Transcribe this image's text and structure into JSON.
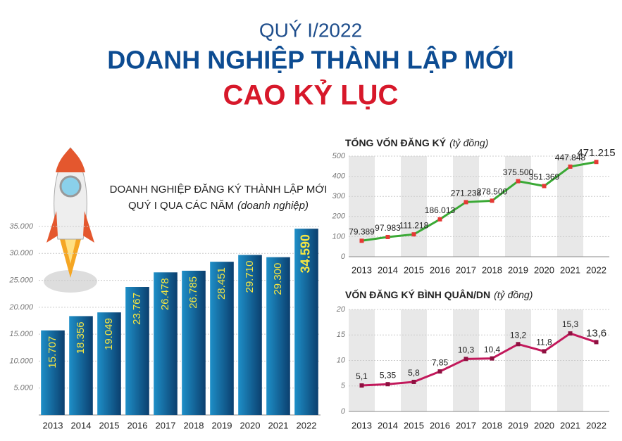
{
  "header": {
    "period": "QUÝ I/2022",
    "title": "DOANH NGHIỆP THÀNH LẬP MỚI",
    "highlight": "CAO KỶ LỤC"
  },
  "chart_data": [
    {
      "type": "bar",
      "title": "DOANH NGHIỆP ĐĂNG KÝ THÀNH LẬP MỚI",
      "subtitle": "QUÝ I QUA CÁC NĂM",
      "unit": "(doanh nghiệp)",
      "categories": [
        "2013",
        "2014",
        "2015",
        "2016",
        "2017",
        "2018",
        "2019",
        "2020",
        "2021",
        "2022"
      ],
      "values": [
        15707,
        18356,
        19049,
        23767,
        26478,
        26785,
        28451,
        29710,
        29300,
        34590
      ],
      "value_labels": [
        "15.707",
        "18.356",
        "19.049",
        "23.767",
        "26.478",
        "26.785",
        "28.451",
        "29.710",
        "29.300",
        "34.590"
      ],
      "color": "#1e8fc8",
      "ylim": [
        0,
        35000
      ],
      "yticks": [
        {
          "value": 5000,
          "label": "5.000"
        },
        {
          "value": 10000,
          "label": "10.000"
        },
        {
          "value": 15000,
          "label": "15.000"
        },
        {
          "value": 20000,
          "label": "20.000"
        },
        {
          "value": 25000,
          "label": "25.000"
        },
        {
          "value": 30000,
          "label": "30.000"
        },
        {
          "value": 35000,
          "label": "35.000"
        }
      ],
      "grid": true
    },
    {
      "type": "line",
      "title": "TỔNG VỐN ĐĂNG KÝ",
      "unit": "(tỷ đồng)",
      "categories": [
        "2013",
        "2014",
        "2015",
        "2016",
        "2017",
        "2018",
        "2019",
        "2020",
        "2021",
        "2022"
      ],
      "values": [
        79.389,
        97.983,
        111.218,
        186.013,
        271.238,
        278.5,
        375.5,
        351.369,
        447.848,
        471.215
      ],
      "value_labels": [
        "79.389",
        "97.983",
        "111.218",
        "186.013",
        "271.238",
        "278.500",
        "375.500",
        "351.369",
        "447.848",
        "471.215"
      ],
      "color": "#3aa935",
      "marker_color": "#e53935",
      "ylim": [
        0,
        500
      ],
      "yticks": [
        0,
        100,
        200,
        300,
        400,
        500
      ],
      "grid": true
    },
    {
      "type": "line",
      "title": "VỐN ĐĂNG KÝ BÌNH QUÂN/DN",
      "unit": "(tỷ đồng)",
      "categories": [
        "2013",
        "2014",
        "2015",
        "2016",
        "2017",
        "2018",
        "2019",
        "2020",
        "2021",
        "2022"
      ],
      "values": [
        5.1,
        5.35,
        5.8,
        7.85,
        10.3,
        10.4,
        13.2,
        11.8,
        15.3,
        13.6
      ],
      "value_labels": [
        "5,1",
        "5,35",
        "5,8",
        "7,85",
        "10,3",
        "10,4",
        "13,2",
        "11,8",
        "15,3",
        "13,6"
      ],
      "color": "#c2185b",
      "marker_color": "#8e1040",
      "ylim": [
        0,
        20
      ],
      "yticks": [
        0,
        5,
        10,
        15,
        20
      ],
      "grid": true
    }
  ]
}
